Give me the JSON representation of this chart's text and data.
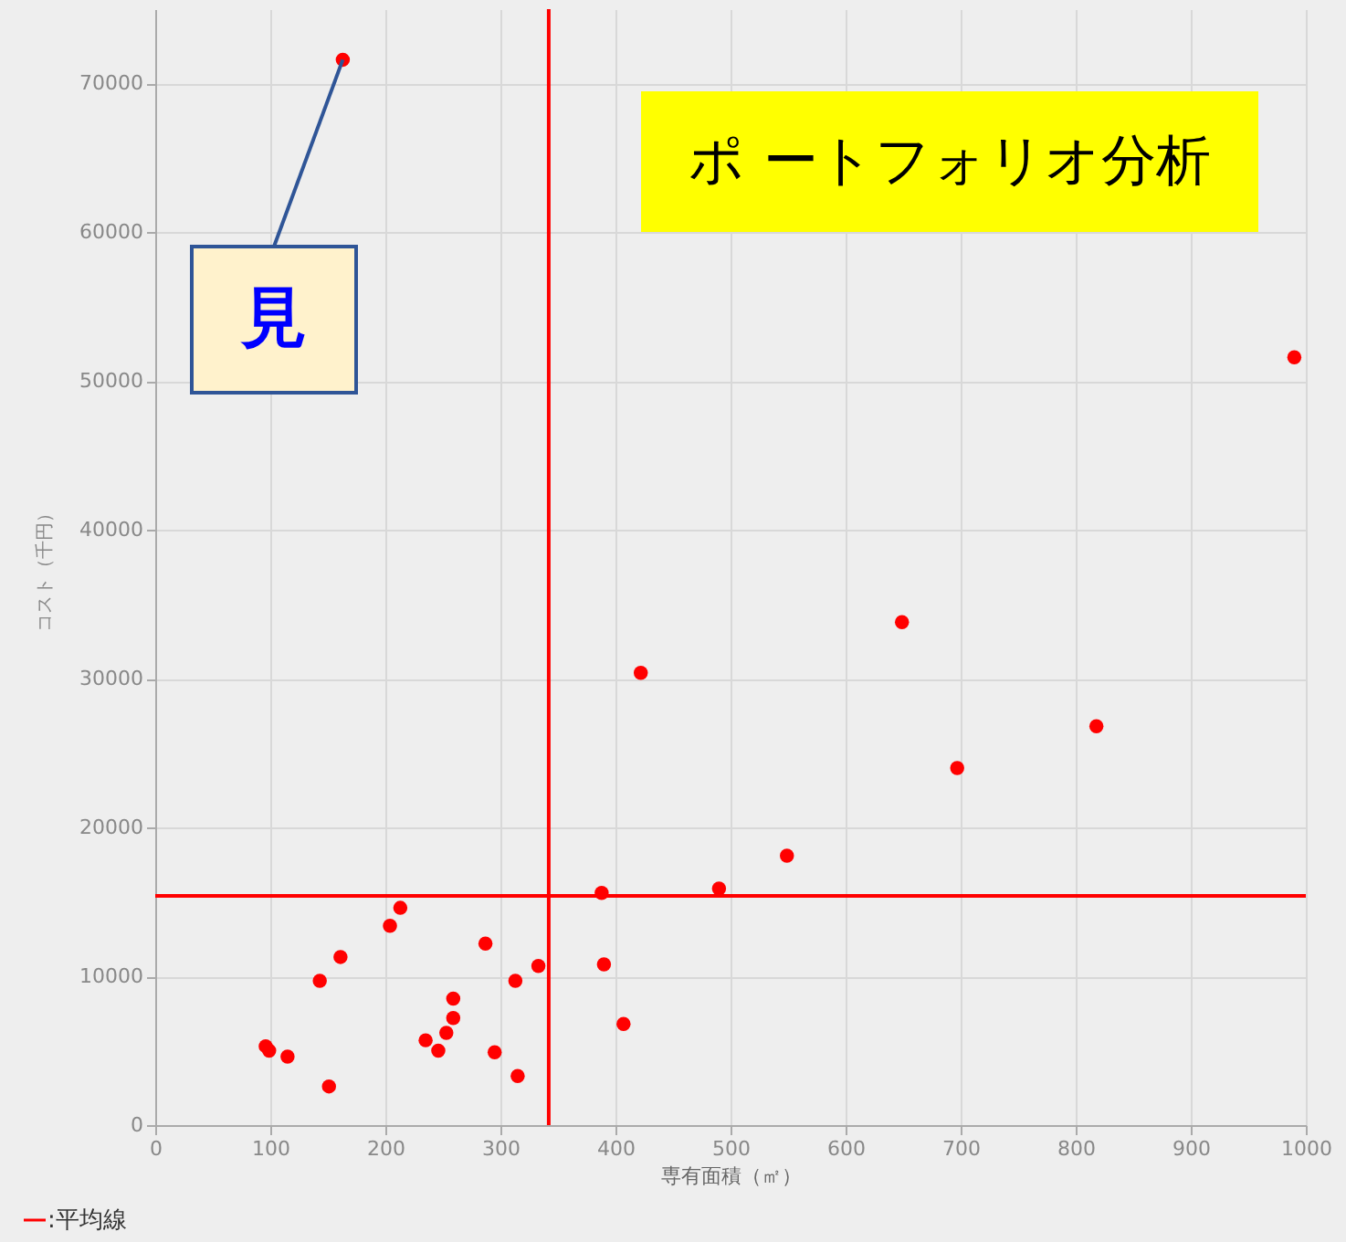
{
  "chart_data": {
    "type": "scatter",
    "title": "ポ ートフォリオ分析",
    "xlabel": "専有面積（㎡）",
    "ylabel": "コスト（千円）",
    "x": [
      163,
      990,
      422,
      649,
      818,
      697,
      549,
      490,
      388,
      213,
      204,
      161,
      143,
      287,
      333,
      313,
      390,
      407,
      259,
      259,
      253,
      235,
      246,
      295,
      315,
      96,
      99,
      115,
      151
    ],
    "series": [
      {
        "color": "#ff0000",
        "values": [
          71600,
          51600,
          30400,
          33800,
          26800,
          24000,
          18100,
          15900,
          15600,
          14600,
          13400,
          11300,
          9700,
          12200,
          10700,
          9700,
          10800,
          6800,
          8500,
          7200,
          6200,
          5700,
          5000,
          4900,
          3300,
          5300,
          5000,
          4600,
          2600
        ]
      }
    ],
    "xlim": [
      0,
      1000
    ],
    "ylim": [
      0,
      75000
    ],
    "xticks": [
      0,
      100,
      200,
      300,
      400,
      500,
      600,
      700,
      800,
      900,
      1000
    ],
    "yticks": [
      0,
      10000,
      20000,
      30000,
      40000,
      50000,
      60000,
      70000
    ],
    "ref_lines": [
      {
        "axis": "x",
        "value": 342,
        "label": ":平均線",
        "color": "#ff0000"
      },
      {
        "axis": "y",
        "value": 15400,
        "color": "#ff0000"
      }
    ],
    "annotations": [
      {
        "text": "見",
        "x": 163,
        "y": 71600
      }
    ],
    "grid": true,
    "marker": "circle"
  }
}
